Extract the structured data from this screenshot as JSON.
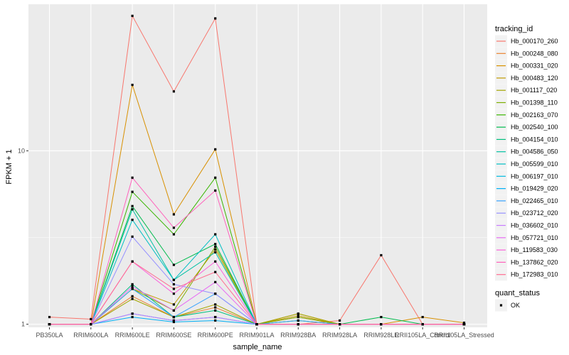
{
  "chart_data": {
    "type": "line",
    "xlabel": "sample_name",
    "ylabel": "FPKM + 1",
    "yscale": "log",
    "ylim": [
      0.96,
      70
    ],
    "yticks": [
      1,
      10
    ],
    "ytick_labels": [
      "1",
      "10"
    ],
    "grid": true,
    "legend_position": "right",
    "categories": [
      "PB350LA",
      "RRIM600LA",
      "RRIM600LE",
      "RRIM600SE",
      "RRIM600PE",
      "RRIM901LA",
      "RRIM928BA",
      "RRIM928LA",
      "RRIM928LE",
      "RRII105LA_Control",
      "RRII105LA_Stressed"
    ],
    "legend_title": "tracking_id",
    "series": [
      {
        "name": "Hb_000170_260",
        "color": "#F8766D",
        "values": [
          1.1,
          1.07,
          60,
          22,
          58,
          1.0,
          1.0,
          1.05,
          2.5,
          1.0,
          1.0
        ]
      },
      {
        "name": "Hb_000248_080",
        "color": "#EA8331",
        "values": [
          1.0,
          1.0,
          1.45,
          1.1,
          1.25,
          1.0,
          1.1,
          1.0,
          1.0,
          1.0,
          1.0
        ]
      },
      {
        "name": "Hb_000331_020",
        "color": "#D89000",
        "values": [
          1.0,
          1.0,
          24,
          4.3,
          10.2,
          1.0,
          1.15,
          1.0,
          1.0,
          1.1,
          1.02
        ]
      },
      {
        "name": "Hb_000483_120",
        "color": "#C09B00",
        "values": [
          1.0,
          1.0,
          1.6,
          1.3,
          2.7,
          1.0,
          1.12,
          1.0,
          1.0,
          1.0,
          1.0
        ]
      },
      {
        "name": "Hb_001117_020",
        "color": "#A3A500",
        "values": [
          1.0,
          1.0,
          1.4,
          1.1,
          1.3,
          1.0,
          1.15,
          1.0,
          1.0,
          1.0,
          1.0
        ]
      },
      {
        "name": "Hb_001398_110",
        "color": "#7CAE00",
        "values": [
          1.0,
          1.0,
          1.6,
          1.2,
          2.8,
          1.0,
          1.1,
          1.0,
          1.0,
          1.0,
          1.0
        ]
      },
      {
        "name": "Hb_002163_070",
        "color": "#39B600",
        "values": [
          1.0,
          1.0,
          5.8,
          3.3,
          7.0,
          1.0,
          1.05,
          1.0,
          1.0,
          1.0,
          1.0
        ]
      },
      {
        "name": "Hb_002540_100",
        "color": "#00BB4E",
        "values": [
          1.0,
          1.0,
          4.8,
          2.2,
          2.9,
          1.0,
          1.0,
          1.0,
          1.1,
          1.0,
          1.0
        ]
      },
      {
        "name": "Hb_004154_010",
        "color": "#00BF7D",
        "values": [
          1.0,
          1.0,
          1.7,
          1.1,
          1.2,
          1.0,
          1.0,
          1.0,
          1.0,
          1.0,
          1.0
        ]
      },
      {
        "name": "Hb_004586_050",
        "color": "#00C1A3",
        "values": [
          1.0,
          1.0,
          4.6,
          1.8,
          2.6,
          1.0,
          1.0,
          1.0,
          1.0,
          1.0,
          1.0
        ]
      },
      {
        "name": "Hb_005599_010",
        "color": "#00BFC4",
        "values": [
          1.0,
          1.0,
          4.0,
          1.8,
          3.3,
          1.0,
          1.0,
          1.0,
          1.0,
          1.0,
          1.0
        ]
      },
      {
        "name": "Hb_006197_010",
        "color": "#00BAE0",
        "values": [
          1.0,
          1.0,
          1.15,
          1.05,
          1.1,
          1.0,
          1.0,
          1.0,
          1.0,
          1.0,
          1.0
        ]
      },
      {
        "name": "Hb_019429_020",
        "color": "#00B0F6",
        "values": [
          1.0,
          1.0,
          1.1,
          1.03,
          1.05,
          1.0,
          1.0,
          1.0,
          1.0,
          1.0,
          1.0
        ]
      },
      {
        "name": "Hb_022465_010",
        "color": "#35A2FF",
        "values": [
          1.0,
          1.0,
          1.6,
          1.1,
          1.5,
          1.0,
          1.05,
          1.0,
          1.0,
          1.0,
          1.0
        ]
      },
      {
        "name": "Hb_023712_020",
        "color": "#9590FF",
        "values": [
          1.0,
          1.0,
          3.2,
          1.7,
          1.5,
          1.0,
          1.0,
          1.0,
          1.0,
          1.0,
          1.0
        ]
      },
      {
        "name": "Hb_036602_010",
        "color": "#C77CFF",
        "values": [
          1.0,
          1.0,
          1.15,
          1.05,
          1.1,
          1.0,
          1.0,
          1.0,
          1.0,
          1.0,
          1.0
        ]
      },
      {
        "name": "Hb_057721_010",
        "color": "#E76BF3",
        "values": [
          1.0,
          1.0,
          1.65,
          1.2,
          1.75,
          1.0,
          1.0,
          1.0,
          1.0,
          1.0,
          1.0
        ]
      },
      {
        "name": "Hb_119583_030",
        "color": "#FA62DB",
        "values": [
          1.0,
          1.0,
          2.3,
          1.5,
          2.3,
          1.0,
          1.0,
          1.0,
          1.0,
          1.0,
          1.0
        ]
      },
      {
        "name": "Hb_137862_020",
        "color": "#FF62BC",
        "values": [
          1.0,
          1.0,
          7.0,
          3.6,
          5.9,
          1.0,
          1.0,
          1.0,
          1.0,
          1.0,
          1.0
        ]
      },
      {
        "name": "Hb_172983_010",
        "color": "#FF6C91",
        "values": [
          1.0,
          1.0,
          2.3,
          1.6,
          2.0,
          1.0,
          1.0,
          1.0,
          1.0,
          1.0,
          1.0
        ]
      }
    ],
    "shape_legend": {
      "title": "quant_status",
      "entries": [
        "OK"
      ]
    },
    "panel_background": "#EBEBEB",
    "grid_color": "#FFFFFF"
  }
}
